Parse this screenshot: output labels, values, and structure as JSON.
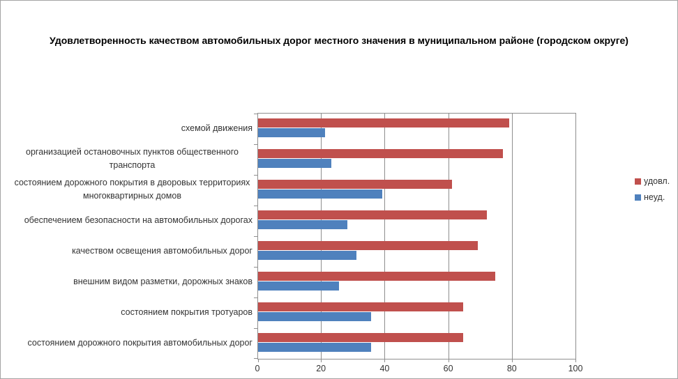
{
  "chart_data": {
    "type": "bar",
    "orientation": "horizontal",
    "title": "Удовлетворенность качеством автомобильных дорог местного значения в муниципальном районе (городском округе)",
    "categories": [
      "схемой движения",
      "организацией остановочных пунктов общественного транспорта",
      "состоянием дорожного покрытия в дворовых территориях многоквартирных домов",
      "обеспечением  безопасности на автомобильных дорогах",
      "качеством освещения  автомобильных дорог",
      "внешним  видом разметки, дорожных знаков",
      "состоянием покрытия тротуаров",
      "состоянием дорожного покрытия автомобильных дорог"
    ],
    "series": [
      {
        "name": "удовл.",
        "color": "#C0504D",
        "values": [
          79,
          77,
          61,
          72,
          69,
          74.5,
          64.5,
          64.5
        ]
      },
      {
        "name": "неуд.",
        "color": "#4F81BD",
        "values": [
          21,
          23,
          39,
          28,
          31,
          25.5,
          35.5,
          35.5
        ]
      }
    ],
    "xlim": [
      0,
      100
    ],
    "xticks": [
      0,
      20,
      40,
      60,
      80,
      100
    ],
    "grid": "vertical-major",
    "legend_position": "right"
  },
  "colors": {
    "satisfied": "#C0504D",
    "unsatisfied": "#4F81BD",
    "grid": "#8e8e8e",
    "axis": "#8e8e8e",
    "text": "#333333",
    "border": "#a3a3a3"
  }
}
